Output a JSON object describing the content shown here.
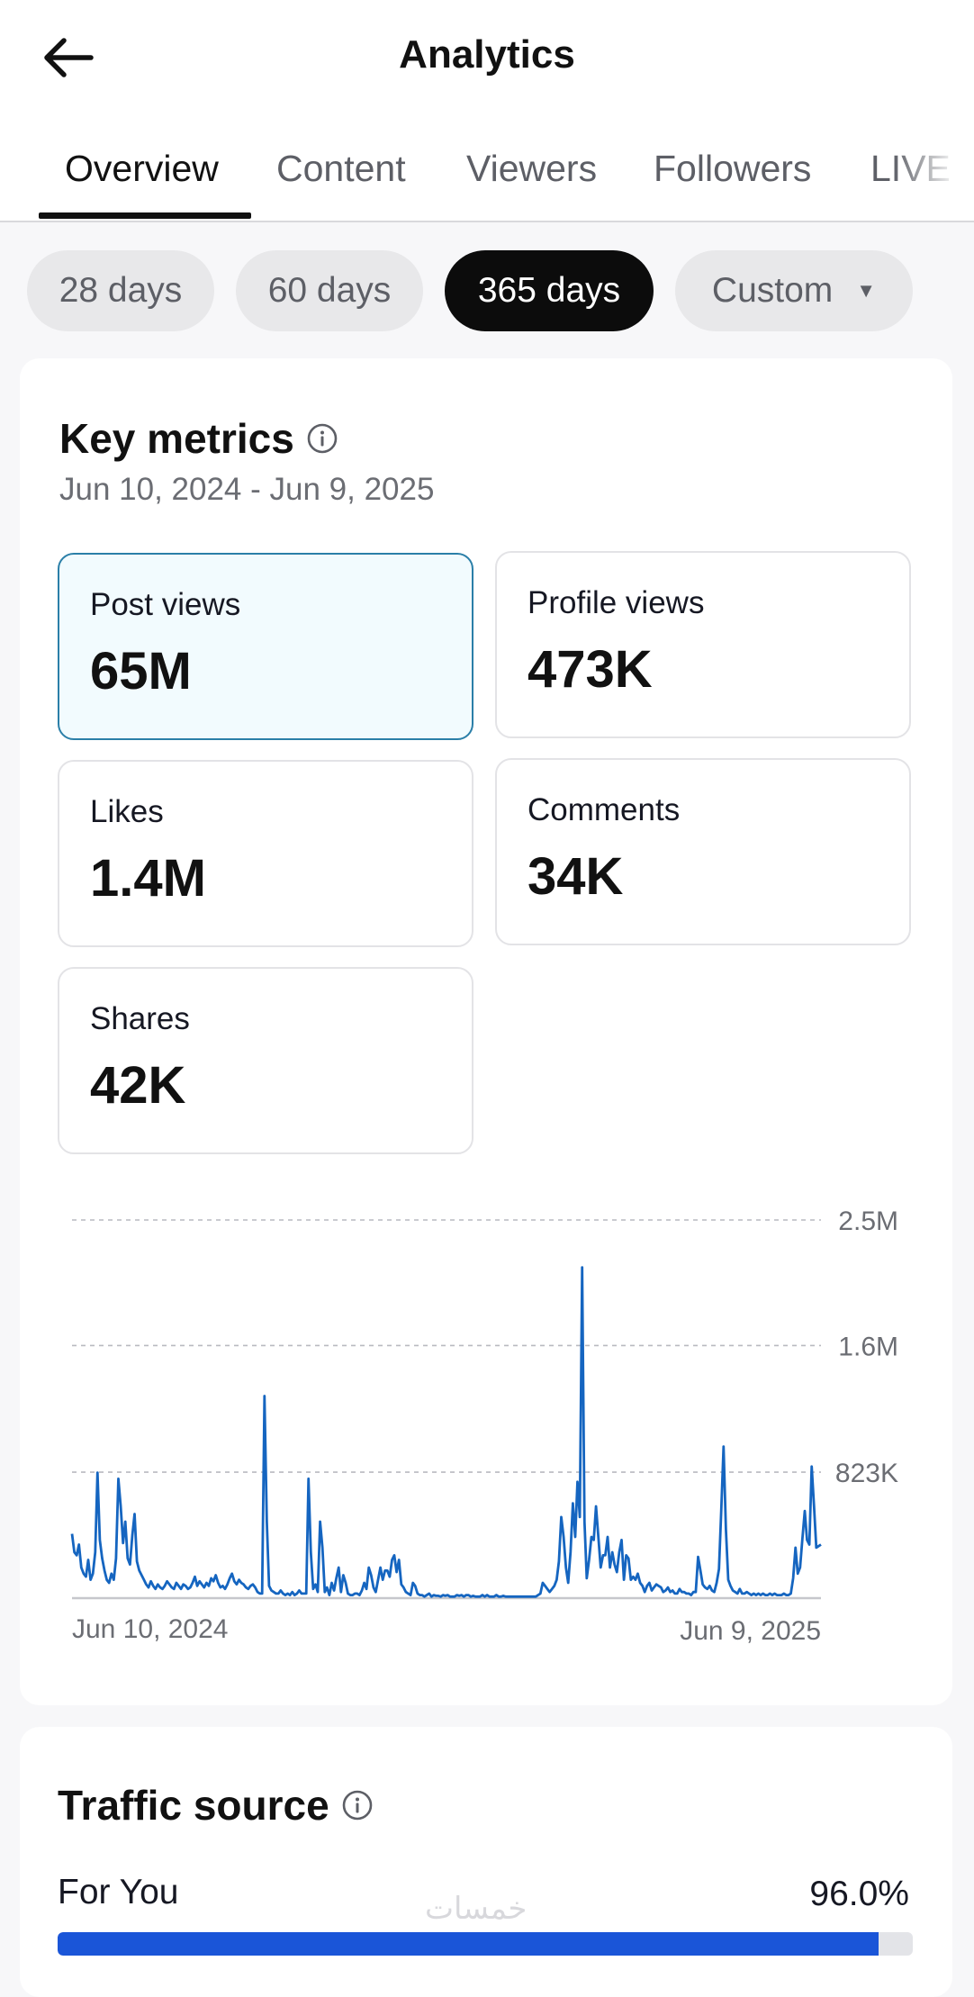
{
  "header": {
    "title": "Analytics",
    "back_icon": "arrow-left-icon"
  },
  "tabs": [
    {
      "label": "Overview",
      "active": true
    },
    {
      "label": "Content",
      "active": false
    },
    {
      "label": "Viewers",
      "active": false
    },
    {
      "label": "Followers",
      "active": false
    },
    {
      "label": "LIVE",
      "active": false
    }
  ],
  "ranges": [
    {
      "label": "28 days",
      "active": false
    },
    {
      "label": "60 days",
      "active": false
    },
    {
      "label": "365 days",
      "active": true
    },
    {
      "label": "Custom",
      "active": false,
      "icon": "caret-down-icon"
    }
  ],
  "key_metrics": {
    "title": "Key metrics",
    "date_range": "Jun 10, 2024 - Jun 9, 2025",
    "metrics": [
      {
        "label": "Post views",
        "value": "65M",
        "selected": true
      },
      {
        "label": "Profile views",
        "value": "473K",
        "selected": false
      },
      {
        "label": "Likes",
        "value": "1.4M",
        "selected": false
      },
      {
        "label": "Comments",
        "value": "34K",
        "selected": false
      },
      {
        "label": "Shares",
        "value": "42K",
        "selected": false
      }
    ]
  },
  "chart_data": {
    "type": "line",
    "title": "",
    "xlabel": "",
    "ylabel": "",
    "x_start_label": "Jun 10, 2024",
    "x_end_label": "Jun 9, 2025",
    "y_ticks": [
      {
        "value": 823000,
        "label": "823K"
      },
      {
        "value": 1650000,
        "label": "1.6M"
      },
      {
        "value": 2470000,
        "label": "2.5M"
      }
    ],
    "ylim": [
      0,
      2470000
    ],
    "grid": true,
    "line_color": "#1565c0",
    "values": [
      420000,
      300000,
      280000,
      350000,
      200000,
      160000,
      140000,
      250000,
      120000,
      160000,
      300000,
      820000,
      380000,
      260000,
      180000,
      120000,
      100000,
      160000,
      120000,
      260000,
      780000,
      600000,
      360000,
      500000,
      260000,
      220000,
      410000,
      550000,
      240000,
      180000,
      150000,
      120000,
      90000,
      70000,
      110000,
      80000,
      60000,
      90000,
      70000,
      60000,
      80000,
      110000,
      90000,
      70000,
      60000,
      100000,
      80000,
      60000,
      90000,
      80000,
      60000,
      70000,
      100000,
      140000,
      80000,
      110000,
      90000,
      70000,
      100000,
      80000,
      130000,
      110000,
      150000,
      100000,
      70000,
      80000,
      60000,
      90000,
      130000,
      160000,
      110000,
      90000,
      120000,
      100000,
      90000,
      70000,
      60000,
      80000,
      90000,
      70000,
      40000,
      30000,
      30000,
      1320000,
      500000,
      80000,
      50000,
      40000,
      30000,
      30000,
      50000,
      30000,
      20000,
      30000,
      20000,
      40000,
      20000,
      30000,
      50000,
      30000,
      30000,
      30000,
      780000,
      300000,
      60000,
      90000,
      40000,
      500000,
      330000,
      40000,
      70000,
      20000,
      100000,
      50000,
      130000,
      200000,
      40000,
      150000,
      100000,
      30000,
      20000,
      20000,
      30000,
      30000,
      20000,
      50000,
      100000,
      60000,
      200000,
      150000,
      70000,
      40000,
      120000,
      200000,
      120000,
      180000,
      180000,
      140000,
      250000,
      280000,
      170000,
      250000,
      90000,
      70000,
      40000,
      30000,
      20000,
      100000,
      80000,
      30000,
      20000,
      20000,
      10000,
      20000,
      30000,
      10000,
      20000,
      15000,
      15000,
      10000,
      20000,
      15000,
      20000,
      10000,
      10000,
      10000,
      20000,
      15000,
      20000,
      10000,
      20000,
      20000,
      10000,
      15000,
      10000,
      10000,
      10000,
      20000,
      10000,
      20000,
      10000,
      10000,
      10000,
      20000,
      10000,
      10000,
      15000,
      10000,
      10000,
      10000,
      10000,
      10000,
      10000,
      10000,
      10000,
      10000,
      10000,
      10000,
      10000,
      10000,
      10000,
      20000,
      30000,
      100000,
      80000,
      60000,
      40000,
      60000,
      80000,
      120000,
      240000,
      530000,
      400000,
      200000,
      100000,
      300000,
      620000,
      400000,
      760000,
      530000,
      2160000,
      500000,
      130000,
      250000,
      400000,
      380000,
      600000,
      400000,
      200000,
      280000,
      280000,
      400000,
      200000,
      300000,
      220000,
      170000,
      300000,
      380000,
      120000,
      280000,
      260000,
      120000,
      140000,
      120000,
      160000,
      100000,
      80000,
      40000,
      80000,
      100000,
      50000,
      70000,
      90000,
      80000,
      70000,
      40000,
      50000,
      70000,
      40000,
      50000,
      30000,
      30000,
      60000,
      40000,
      40000,
      30000,
      30000,
      20000,
      40000,
      40000,
      270000,
      180000,
      90000,
      70000,
      60000,
      80000,
      50000,
      40000,
      100000,
      190000,
      570000,
      990000,
      450000,
      120000,
      80000,
      50000,
      40000,
      30000,
      60000,
      30000,
      30000,
      40000,
      30000,
      20000,
      30000,
      20000,
      30000,
      20000,
      30000,
      20000,
      20000,
      30000,
      20000,
      30000,
      20000,
      20000,
      20000,
      30000,
      20000,
      20000,
      30000,
      130000,
      330000,
      160000,
      200000,
      390000,
      570000,
      380000,
      350000,
      860000,
      600000,
      330000,
      340000,
      350000
    ]
  },
  "traffic_source": {
    "title": "Traffic source",
    "rows": [
      {
        "label": "For You",
        "value_text": "96.0%",
        "fraction": 0.96
      }
    ]
  },
  "watermark": "خمسات",
  "colors": {
    "accent_blue": "#1a55d8",
    "chart_line": "#1565c0",
    "selected_card_border": "#2b7fa8"
  }
}
